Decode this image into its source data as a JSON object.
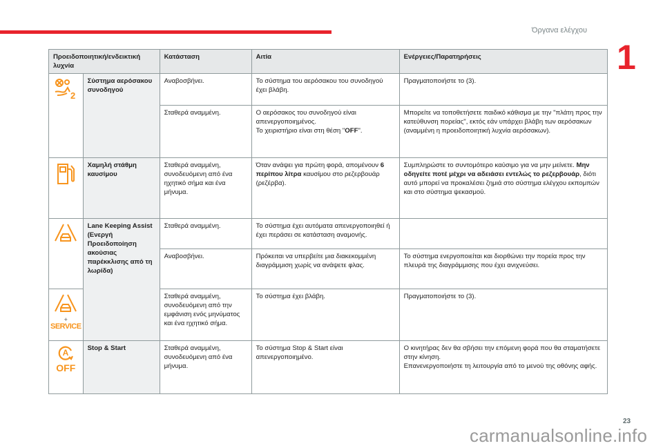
{
  "header": {
    "section_title": "Όργανα ελέγχου",
    "chapter_number": "1"
  },
  "footer": {
    "page_number": "23",
    "watermark": "carmanualsonline.info"
  },
  "colors": {
    "accent": "#e8232c",
    "icon": "#f7941d"
  },
  "table": {
    "headers": [
      "Προειδοποιητική/ενδεικτική λυχνία",
      "Κατάσταση",
      "Αιτία",
      "Ενέργειες/Παρατηρήσεις"
    ],
    "groups": [
      {
        "name": "Σύστημα αερόσακου συνοδηγού",
        "icon": "passenger-airbag-off-icon",
        "rows": [
          {
            "state": "Αναβοσβήνει.",
            "cause": "Το σύστημα του αερόσακου του συνοδηγού έχει βλάβη.",
            "action": "Πραγματοποιήστε το (3)."
          },
          {
            "state": "Σταθερά αναμμένη.",
            "cause_a": "Ο αερόσακος του συνοδηγού είναι απενεργοποιημένος.",
            "cause_b": "Το χειριστήριο είναι στη θέση \"",
            "cause_bold": "OFF",
            "cause_c": "\".",
            "action": "Μπορείτε να τοποθετήσετε παιδικό κάθισμα με την \"πλάτη προς την κατεύθυνση πορείας\", εκτός εάν υπάρχει βλάβη των αερόσακων (αναμμένη η προειδοποιητική λυχνία αερόσακων)."
          }
        ]
      },
      {
        "name": "Χαμηλή στάθμη καυσίμου",
        "icon": "fuel-pump-icon",
        "rows": [
          {
            "state": "Σταθερά αναμμένη, συνοδευόμενη από ένα ηχητικό σήμα και ένα μήνυμα.",
            "cause_a": "Όταν ανάψει για πρώτη φορά, απομένουν ",
            "cause_bold": "6 περίπου λίτρα",
            "cause_c": " καυσίμου στο ρεζερβουάρ (ρεζέρβα).",
            "action_a": "Συμπληρώστε το συντομότερο καύσιμο για να μην μείνετε. ",
            "action_bold": "Μην οδηγείτε ποτέ μέχρι να αδειάσει εντελώς το ρεζερβουάρ",
            "action_c": ", διότι αυτό μπορεί να προκαλέσει ζημιά στο σύστημα ελέγχου εκπομπών και στο σύστημα ψεκασμού."
          }
        ]
      },
      {
        "name": "Lane Keeping Assist (Ενεργή Προειδοποίηση ακούσιας παρέκκλισης από τη λωρίδα)",
        "icon": "lane-keeping-icon",
        "icon2": "lane-keeping-service-icon",
        "service_label": "SERVICE",
        "plus": "+",
        "rows": [
          {
            "state": "Σταθερά αναμμένη.",
            "cause": "Το σύστημα έχει αυτόματα απενεργοποιηθεί ή έχει περάσει σε κατάσταση αναμονής.",
            "action": ""
          },
          {
            "state": "Αναβοσβήνει.",
            "cause": "Πρόκειται να υπερβείτε μια διακεκομμένη διαγράμμιση χωρίς να ανάψετε φλας.",
            "action": "Το σύστημα ενεργοποιείται και διορθώνει την πορεία προς την πλευρά της διαγράμμισης που έχει ανιχνεύσει."
          },
          {
            "state": "Σταθερά αναμμένη, συνοδευόμενη από την εμφάνιση ενός μηνύματος και ένα ηχητικό σήμα.",
            "cause": "Το σύστημα έχει βλάβη.",
            "action": "Πραγματοποιήστε το (3)."
          }
        ]
      },
      {
        "name": "Stop & Start",
        "icon": "stop-start-off-icon",
        "icon_letter": "A",
        "off_label": "OFF",
        "rows": [
          {
            "state": "Σταθερά αναμμένη, συνοδευόμενη από ένα μήνυμα.",
            "cause": "Το σύστημα Stop & Start είναι απενεργοποιημένο.",
            "action_a": "Ο κινητήρας δεν θα σβήσει την επόμενη φορά που θα σταματήσετε στην κίνηση.",
            "action_b": "Επανενεργοποιήστε τη λειτουργία από το μενού της οθόνης αφής."
          }
        ]
      }
    ]
  }
}
